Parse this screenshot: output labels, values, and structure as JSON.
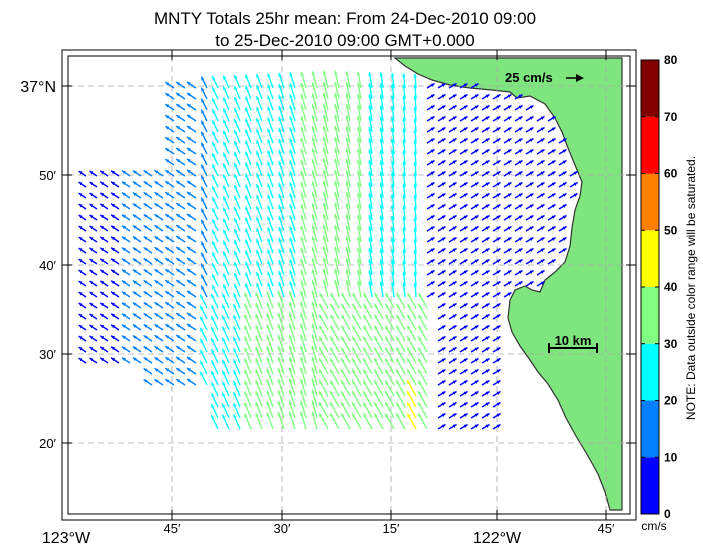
{
  "title_line1": "MNTY Totals 25hr mean: From 24-Dec-2010 09:00",
  "title_line2": "to 25-Dec-2010 09:00 GMT+0.000",
  "lon_ticks": [
    "123°W",
    "45′",
    "30′",
    "15′",
    "122°W",
    "45′"
  ],
  "lat_ticks": [
    "37°N",
    "50′",
    "40′",
    "30′",
    "20′"
  ],
  "scale_arrow_label": "25 cm/s",
  "scale_bar_label": "10 km",
  "colorbar": {
    "ticks": [
      "80",
      "70",
      "60",
      "50",
      "40",
      "30",
      "20",
      "10",
      "0"
    ],
    "unit": "cm/s",
    "note": "NOTE: Data outside color range will be saturated.",
    "colors": [
      "#0000ff",
      "#0080ff",
      "#00ffff",
      "#80ff80",
      "#ffff00",
      "#ff8000",
      "#ff0000",
      "#800000"
    ],
    "range": [
      0,
      80
    ]
  },
  "colors": {
    "land": "#7fe57f",
    "coast": "#333333",
    "grid": "#aaaaaa"
  },
  "map": {
    "lon_range": [
      -123.0,
      -121.7
    ],
    "lat_range": [
      36.2,
      37.08
    ],
    "vector_scale_cm_s": 25
  }
}
